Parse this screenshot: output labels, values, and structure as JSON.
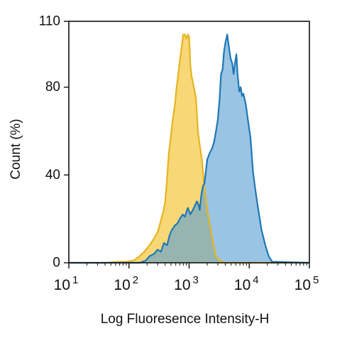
{
  "chart_data": {
    "type": "area",
    "title": "",
    "xlabel": "Log Fluoresence Intensity-H",
    "ylabel": "Count  (%)",
    "x_scale": "log",
    "xlim": [
      10,
      100000
    ],
    "ylim": [
      0,
      110
    ],
    "x_ticks": [
      {
        "value": 10,
        "base": "10",
        "exp": "1"
      },
      {
        "value": 100,
        "base": "10",
        "exp": "2"
      },
      {
        "value": 1000,
        "base": "10",
        "exp": "3"
      },
      {
        "value": 10000,
        "base": "10",
        "exp": "4"
      },
      {
        "value": 100000,
        "base": "10",
        "exp": "5"
      }
    ],
    "y_ticks": [
      0,
      40,
      80,
      110
    ],
    "grid": false,
    "legend": "none",
    "series": [
      {
        "color": "#e6b422",
        "fill": "#f5c842",
        "points": [
          [
            10,
            0
          ],
          [
            40,
            0
          ],
          [
            70,
            0.5
          ],
          [
            90,
            0.5
          ],
          [
            120,
            1
          ],
          [
            150,
            3
          ],
          [
            180,
            5
          ],
          [
            220,
            8
          ],
          [
            260,
            11
          ],
          [
            300,
            14
          ],
          [
            330,
            18
          ],
          [
            370,
            23
          ],
          [
            400,
            28
          ],
          [
            430,
            38
          ],
          [
            460,
            50
          ],
          [
            500,
            58
          ],
          [
            540,
            66
          ],
          [
            580,
            72
          ],
          [
            620,
            80
          ],
          [
            660,
            86
          ],
          [
            700,
            92
          ],
          [
            750,
            98
          ],
          [
            800,
            104
          ],
          [
            850,
            104
          ],
          [
            900,
            102
          ],
          [
            950,
            104
          ],
          [
            1000,
            103
          ],
          [
            1050,
            90
          ],
          [
            1100,
            85
          ],
          [
            1200,
            80
          ],
          [
            1300,
            75
          ],
          [
            1400,
            60
          ],
          [
            1500,
            54
          ],
          [
            1650,
            46
          ],
          [
            1800,
            34
          ],
          [
            2000,
            24
          ],
          [
            2200,
            18
          ],
          [
            2500,
            9
          ],
          [
            2800,
            3
          ],
          [
            3200,
            1
          ],
          [
            4000,
            0
          ],
          [
            100000,
            0
          ]
        ]
      },
      {
        "color": "#1f77b4",
        "fill": "#5b9fd3",
        "points": [
          [
            10,
            0
          ],
          [
            150,
            0
          ],
          [
            190,
            1
          ],
          [
            220,
            3
          ],
          [
            260,
            4
          ],
          [
            300,
            6
          ],
          [
            340,
            5
          ],
          [
            380,
            9
          ],
          [
            430,
            8
          ],
          [
            480,
            13
          ],
          [
            520,
            15
          ],
          [
            580,
            17
          ],
          [
            640,
            18
          ],
          [
            700,
            20
          ],
          [
            780,
            22
          ],
          [
            850,
            21
          ],
          [
            950,
            25
          ],
          [
            1050,
            22
          ],
          [
            1150,
            24
          ],
          [
            1250,
            26
          ],
          [
            1350,
            28
          ],
          [
            1450,
            26
          ],
          [
            1500,
            24
          ],
          [
            1600,
            31
          ],
          [
            1700,
            35
          ],
          [
            1800,
            36
          ],
          [
            2000,
            47
          ],
          [
            2200,
            50
          ],
          [
            2400,
            52
          ],
          [
            2600,
            55
          ],
          [
            2800,
            60
          ],
          [
            3000,
            65
          ],
          [
            3200,
            74
          ],
          [
            3400,
            86
          ],
          [
            3600,
            88
          ],
          [
            3800,
            96
          ],
          [
            4000,
            100
          ],
          [
            4300,
            104
          ],
          [
            4600,
            98
          ],
          [
            4900,
            93
          ],
          [
            5200,
            91
          ],
          [
            5500,
            86
          ],
          [
            5800,
            91
          ],
          [
            6100,
            95
          ],
          [
            6400,
            86
          ],
          [
            6800,
            78
          ],
          [
            7200,
            80
          ],
          [
            7600,
            76
          ],
          [
            8000,
            77
          ],
          [
            8800,
            72
          ],
          [
            9500,
            65
          ],
          [
            10500,
            57
          ],
          [
            11500,
            42
          ],
          [
            12500,
            34
          ],
          [
            14000,
            25
          ],
          [
            16000,
            15
          ],
          [
            18500,
            8
          ],
          [
            21000,
            3
          ],
          [
            24000,
            0.5
          ],
          [
            100000,
            0
          ]
        ]
      }
    ]
  }
}
